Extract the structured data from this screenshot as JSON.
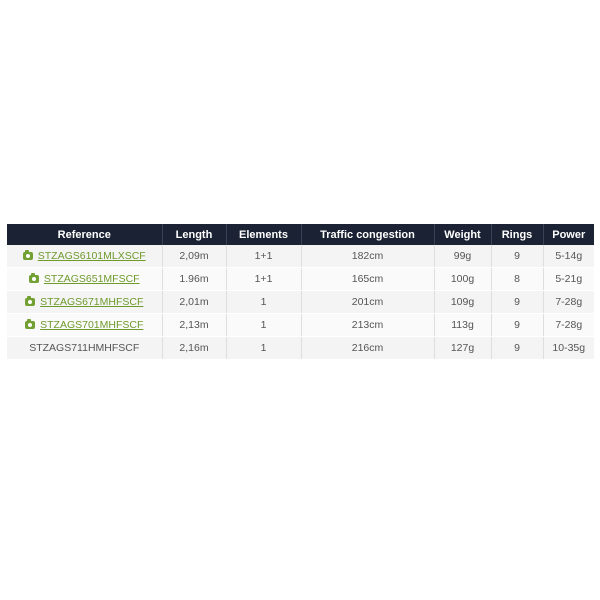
{
  "table": {
    "headers": [
      "Reference",
      "Length",
      "Elements",
      "Traffic congestion",
      "Weight",
      "Rings",
      "Power"
    ],
    "rows": [
      {
        "reference": "STZAGS6101MLXSCF",
        "has_photo": true,
        "length": "2,09m",
        "elements": "1+1",
        "traffic_congestion": "182cm",
        "weight": "99g",
        "rings": "9",
        "power": "5-14g"
      },
      {
        "reference": "STZAGS651MFSCF",
        "has_photo": true,
        "length": "1.96m",
        "elements": "1+1",
        "traffic_congestion": "165cm",
        "weight": "100g",
        "rings": "8",
        "power": "5-21g"
      },
      {
        "reference": "STZAGS671MHFSCF",
        "has_photo": true,
        "length": "2,01m",
        "elements": "1",
        "traffic_congestion": "201cm",
        "weight": "109g",
        "rings": "9",
        "power": "7-28g"
      },
      {
        "reference": "STZAGS701MHFSCF",
        "has_photo": true,
        "length": "2,13m",
        "elements": "1",
        "traffic_congestion": "213cm",
        "weight": "113g",
        "rings": "9",
        "power": "7-28g"
      },
      {
        "reference": "STZAGS711HMHFSCF",
        "has_photo": false,
        "length": "2,16m",
        "elements": "1",
        "traffic_congestion": "216cm",
        "weight": "127g",
        "rings": "9",
        "power": "10-35g"
      }
    ]
  },
  "icons": {
    "photo": "camera-icon"
  },
  "colors": {
    "header_bg": "#1b2233",
    "link": "#6f9a2c",
    "camera_icon": "#72a033"
  }
}
